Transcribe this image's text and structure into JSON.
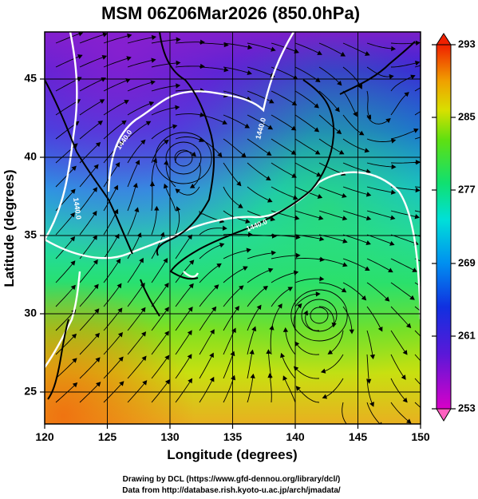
{
  "title": "MSM 06Z06Mar2026 (850.0hPa)",
  "xlabel": "Longitude (degrees)",
  "ylabel": "Latitude  (degrees)",
  "x_ticks": [
    "120",
    "125",
    "130",
    "135",
    "140",
    "145",
    "150"
  ],
  "y_ticks": [
    "25",
    "30",
    "35",
    "40",
    "45"
  ],
  "colorbar": {
    "ticks": [
      "293",
      "285",
      "277",
      "269",
      "261",
      "253"
    ],
    "range": [
      253,
      293
    ]
  },
  "contour_labels": [
    "1440.0",
    "1440.0",
    "1440.0",
    "1440.0"
  ],
  "credits": [
    "Drawing by DCL (https://www.gfd-dennou.org/library/dcl/)",
    "Data from http://database.rish.kyoto-u.ac.jp/arch/jmadata/"
  ],
  "map": {
    "lon_range": [
      120,
      150
    ],
    "lat_range": [
      22.5,
      47.5
    ]
  },
  "colors": {
    "cold": "#8a1fd0",
    "cool": "#1f4fe0",
    "mild": "#20d8c8",
    "warm": "#3ee060",
    "hot": "#ee8a10"
  }
}
